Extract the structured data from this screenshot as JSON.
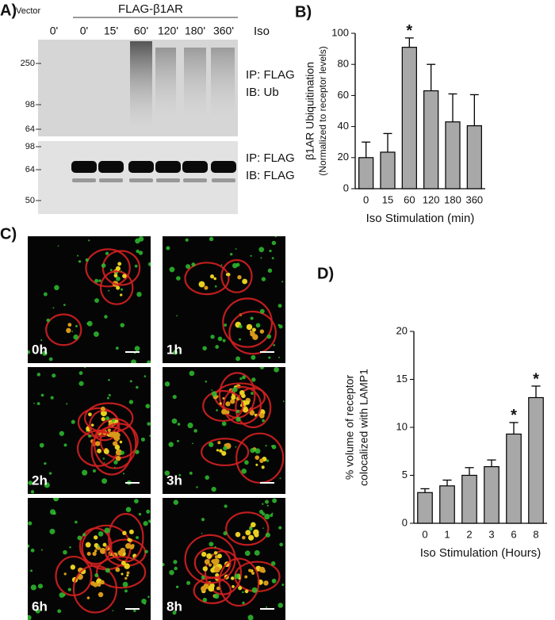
{
  "panels": {
    "a": {
      "label": "A)",
      "vector_label": "Vector",
      "construct_label": "FLAG-β1AR",
      "treatment_label": "Iso",
      "lanes": [
        "0'",
        "0'",
        "15'",
        "60'",
        "120'",
        "180'",
        "360'"
      ],
      "blots": [
        {
          "markers": [
            250,
            98,
            64
          ],
          "labels": [
            "IP: FLAG",
            "IB: Ub"
          ]
        },
        {
          "markers": [
            98,
            64,
            50
          ],
          "labels": [
            "IP: FLAG",
            "IB: FLAG"
          ]
        }
      ]
    },
    "b": {
      "label": "B)"
    },
    "c": {
      "label": "C)",
      "images": [
        "0h",
        "1h",
        "2h",
        "3h",
        "6h",
        "8h"
      ]
    },
    "d": {
      "label": "D)"
    }
  },
  "chart_data": [
    {
      "type": "bar",
      "categories": [
        "0",
        "15",
        "60",
        "120",
        "180",
        "360"
      ],
      "values": [
        20,
        23.5,
        91,
        63,
        43,
        40.5
      ],
      "errors": [
        10,
        12,
        6,
        17,
        18,
        20
      ],
      "significance": [
        null,
        null,
        "*",
        null,
        null,
        null
      ],
      "y_label": [
        "β1AR Ubiquitination",
        "(Normalized to receptor levels)"
      ],
      "x_label": "Iso Stimulation (min)",
      "color": "#a8a8a8",
      "ylim": [
        0,
        100
      ],
      "yticks": [
        0,
        20,
        40,
        60,
        80,
        100
      ]
    },
    {
      "type": "bar",
      "categories": [
        "0",
        "1",
        "2",
        "3",
        "6",
        "8"
      ],
      "values": [
        3.2,
        3.9,
        5.0,
        5.9,
        9.3,
        13.1
      ],
      "errors": [
        0.4,
        0.6,
        0.8,
        0.7,
        1.2,
        1.2
      ],
      "significance": [
        null,
        null,
        null,
        null,
        "*",
        "*"
      ],
      "y_label": [
        "% volume of receptor",
        "colocalized with LAMP1"
      ],
      "x_label": "Iso Stimulation (Hours)",
      "color": "#a8a8a8",
      "ylim": [
        0,
        20
      ],
      "yticks": [
        0,
        5,
        10,
        15,
        20
      ]
    }
  ]
}
